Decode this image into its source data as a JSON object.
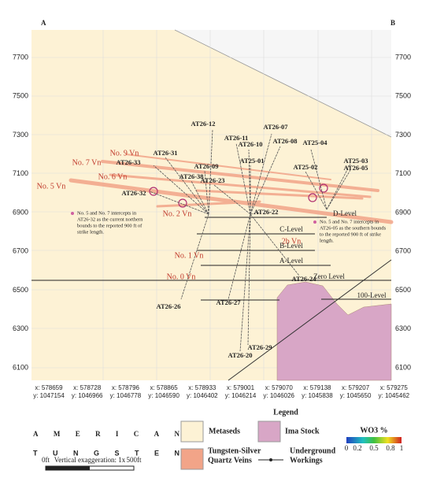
{
  "header": {
    "left": "A",
    "right": "B"
  },
  "elevation_ticks": [
    "7700",
    "7500",
    "7300",
    "7100",
    "6900",
    "6700",
    "6500",
    "6300",
    "6100"
  ],
  "coordinates": [
    {
      "x": "x: 578659",
      "y": "y: 1047154"
    },
    {
      "x": "x: 578728",
      "y": "y: 1046966"
    },
    {
      "x": "x: 578796",
      "y": "y: 1046778"
    },
    {
      "x": "x: 578865",
      "y": "y: 1046590"
    },
    {
      "x": "x: 578933",
      "y": "y: 1046402"
    },
    {
      "x": "x: 579001",
      "y": "y: 1046214"
    },
    {
      "x": "x: 579070",
      "y": "y: 1046026"
    },
    {
      "x": "x: 579138",
      "y": "y: 1045838"
    },
    {
      "x": "x: 579207",
      "y": "y: 1045650"
    },
    {
      "x": "x: 579275",
      "y": "y: 1045462"
    }
  ],
  "drill_holes": [
    "AT26-12",
    "AT26-11",
    "AT26-10",
    "AT26-07",
    "AT26-08",
    "AT25-04",
    "AT25-01",
    "AT26-31",
    "AT26-33",
    "AT26-09",
    "AT26-38",
    "AT26-23",
    "AT26-32",
    "AT25-02",
    "AT25-03",
    "AT26-05",
    "AT26-22",
    "AT26-24",
    "AT26-26",
    "AT26-27",
    "AT26-29",
    "AT26-20"
  ],
  "veins": [
    "No. 9 Vn",
    "No. 7 Vn",
    "No. 6 Vn",
    "No. 5 Vn",
    "No. 2 Vn",
    "No. 1 Vn",
    "No. 0 Vn",
    "2b Vn"
  ],
  "levels": [
    "D-Level",
    "C-Level",
    "B-Level",
    "A-Level",
    "Zero Level",
    "100-Level"
  ],
  "annotations": [
    [
      "No. 5 and No. 7 intercepts in",
      "AT26-32 as the current northern",
      "bounds to the reported 900 ft of",
      "strike length."
    ],
    [
      "No. 5 and No. 7 intercepts in",
      "AT26-05 as the southern bounds",
      "to the reported 900 ft of strike",
      "length."
    ]
  ],
  "legend": {
    "title": "Legend",
    "items": [
      [
        "Metaseds"
      ],
      [
        "Ima Stock"
      ],
      [
        "Tungsten-Silver",
        "Quartz Veins"
      ],
      [
        "Underground",
        "Workings"
      ]
    ],
    "colorbar": {
      "title": "WO3 %",
      "ticks": [
        "0",
        "0.2",
        "0.5",
        "0.8",
        "1"
      ]
    }
  },
  "logo": {
    "line1": "AMERICAN",
    "line2": "TUNGSTEN"
  },
  "scale": {
    "start": "0ft",
    "caption": "Vertical exaggeration: 1x",
    "end": "500ft"
  }
}
